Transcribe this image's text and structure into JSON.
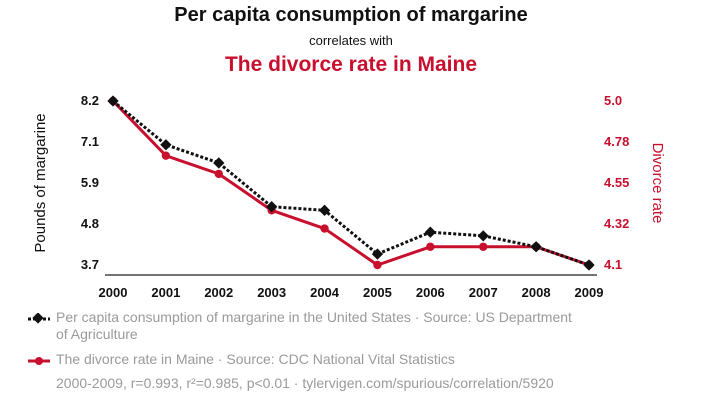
{
  "chart_data": {
    "type": "line",
    "title": "Per capita consumption of margarine",
    "subtitle": "correlates with",
    "title2": "The divorce rate in Maine",
    "x": [
      "2000",
      "2001",
      "2002",
      "2003",
      "2004",
      "2005",
      "2006",
      "2007",
      "2008",
      "2009"
    ],
    "series": [
      {
        "name": "Per capita consumption of margarine in the United States · Source: US Department of Agriculture",
        "axis": "left",
        "color": "#111111",
        "values": [
          8.2,
          7.0,
          6.5,
          5.3,
          5.2,
          4.0,
          4.6,
          4.5,
          4.2,
          3.7
        ]
      },
      {
        "name": "The divorce rate in Maine · Source: CDC National Vital Statistics",
        "axis": "right",
        "color": "#c8102e",
        "values": [
          5.0,
          4.7,
          4.6,
          4.4,
          4.3,
          4.1,
          4.2,
          4.2,
          4.2,
          4.1
        ]
      }
    ],
    "ylabel": "Pounds of margarine",
    "ylabel2": "Divorce rate",
    "yticks": [
      "8.2",
      "7.1",
      "5.9",
      "4.8",
      "3.7"
    ],
    "yticks2": [
      "5.0",
      "4.78",
      "4.55",
      "4.32",
      "4.1"
    ],
    "ylim": [
      3.7,
      8.2
    ],
    "ylim2": [
      4.1,
      5.0
    ],
    "grid": false,
    "footer": "2000-2009, r=0.993, r²=0.985, p<0.01 · tylervigen.com/spurious/correlation/5920"
  }
}
